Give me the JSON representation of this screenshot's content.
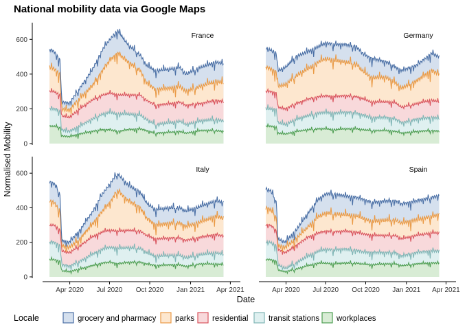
{
  "chart_data": {
    "type": "area",
    "title": "National mobility data via Google Maps",
    "xlabel": "Date",
    "ylabel": "Normalised Mobility",
    "ylim": [
      0,
      700
    ],
    "yticks": [
      0,
      200,
      400,
      600
    ],
    "xticks": [
      {
        "label": "Apr 2020",
        "t": 0.125
      },
      {
        "label": "Jul 2020",
        "t": 0.37
      },
      {
        "label": "Oct 2020",
        "t": 0.618
      },
      {
        "label": "Jan 2021",
        "t": 0.87
      },
      {
        "label": "Apr 2021",
        "t": 1.115
      }
    ],
    "legend_title": "Locale",
    "legend_position": "bottom",
    "stacked": true,
    "series_meta": [
      {
        "name": "workplaces",
        "line": "#4e9e52",
        "fill": "#d8ecd5"
      },
      {
        "name": "transit stations",
        "line": "#7fb5b5",
        "fill": "#dff0f0"
      },
      {
        "name": "residential",
        "line": "#d9545e",
        "fill": "#f8d9db"
      },
      {
        "name": "parks",
        "line": "#ea9a45",
        "fill": "#fde7cf"
      },
      {
        "name": "grocery and pharmacy",
        "line": "#4a6fa5",
        "fill": "#d5e0ee"
      }
    ],
    "panels": [
      {
        "name": "France",
        "t": [
          0,
          0.03,
          0.07,
          0.08,
          0.13,
          0.2,
          0.28,
          0.35,
          0.4,
          0.45,
          0.52,
          0.6,
          0.64,
          0.7,
          0.8,
          0.86,
          0.9,
          1.0,
          1.1,
          1.15
        ],
        "workplaces": [
          100,
          100,
          95,
          45,
          40,
          55,
          70,
          80,
          80,
          70,
          80,
          85,
          75,
          60,
          65,
          70,
          60,
          75,
          75,
          70
        ],
        "transit": [
          200,
          200,
          190,
          80,
          70,
          100,
          140,
          170,
          180,
          170,
          170,
          165,
          140,
          110,
          120,
          130,
          110,
          130,
          140,
          130
        ],
        "residential": [
          300,
          300,
          280,
          160,
          150,
          200,
          250,
          280,
          290,
          280,
          280,
          280,
          250,
          220,
          230,
          240,
          220,
          230,
          250,
          240
        ],
        "parks": [
          440,
          430,
          400,
          200,
          190,
          260,
          330,
          420,
          480,
          520,
          470,
          420,
          350,
          310,
          320,
          330,
          300,
          330,
          360,
          350
        ],
        "grocery": [
          540,
          530,
          480,
          240,
          230,
          320,
          420,
          540,
          600,
          650,
          570,
          510,
          450,
          420,
          430,
          440,
          400,
          440,
          470,
          460
        ]
      },
      {
        "name": "Germany",
        "t": [
          0,
          0.03,
          0.07,
          0.08,
          0.13,
          0.2,
          0.28,
          0.35,
          0.4,
          0.45,
          0.52,
          0.6,
          0.64,
          0.7,
          0.8,
          0.86,
          0.9,
          1.0,
          1.1,
          1.15
        ],
        "workplaces": [
          100,
          100,
          95,
          60,
          55,
          70,
          80,
          85,
          85,
          80,
          85,
          85,
          80,
          75,
          75,
          70,
          60,
          70,
          75,
          70
        ],
        "transit": [
          200,
          200,
          195,
          120,
          110,
          140,
          160,
          175,
          180,
          175,
          180,
          175,
          165,
          150,
          150,
          140,
          120,
          140,
          150,
          145
        ],
        "residential": [
          300,
          300,
          290,
          210,
          200,
          230,
          255,
          270,
          275,
          270,
          275,
          270,
          260,
          240,
          240,
          235,
          210,
          230,
          250,
          240
        ],
        "parks": [
          440,
          430,
          410,
          330,
          340,
          390,
          430,
          470,
          490,
          480,
          470,
          460,
          420,
          380,
          380,
          350,
          320,
          360,
          420,
          400
        ],
        "grocery": [
          550,
          540,
          520,
          420,
          440,
          500,
          530,
          560,
          580,
          570,
          570,
          560,
          520,
          490,
          470,
          440,
          420,
          450,
          520,
          500
        ]
      },
      {
        "name": "Italy",
        "t": [
          0,
          0.03,
          0.07,
          0.08,
          0.13,
          0.2,
          0.28,
          0.35,
          0.4,
          0.45,
          0.52,
          0.6,
          0.64,
          0.7,
          0.8,
          0.86,
          0.9,
          1.0,
          1.1,
          1.15
        ],
        "workplaces": [
          100,
          100,
          90,
          35,
          30,
          45,
          65,
          80,
          85,
          75,
          85,
          85,
          75,
          65,
          70,
          70,
          60,
          75,
          75,
          70
        ],
        "transit": [
          200,
          200,
          180,
          70,
          60,
          90,
          130,
          160,
          170,
          165,
          170,
          165,
          140,
          120,
          125,
          125,
          110,
          130,
          140,
          130
        ],
        "residential": [
          300,
          300,
          270,
          150,
          140,
          180,
          230,
          260,
          270,
          265,
          270,
          265,
          240,
          220,
          225,
          225,
          210,
          230,
          245,
          235
        ],
        "parks": [
          440,
          430,
          380,
          180,
          170,
          220,
          300,
          380,
          430,
          500,
          440,
          400,
          340,
          300,
          310,
          310,
          290,
          320,
          350,
          340
        ],
        "grocery": [
          550,
          540,
          480,
          210,
          200,
          270,
          370,
          480,
          540,
          600,
          530,
          490,
          430,
          390,
          400,
          400,
          380,
          410,
          440,
          430
        ]
      },
      {
        "name": "Spain",
        "t": [
          0,
          0.03,
          0.07,
          0.08,
          0.13,
          0.2,
          0.28,
          0.35,
          0.4,
          0.45,
          0.52,
          0.6,
          0.64,
          0.7,
          0.8,
          0.86,
          0.9,
          1.0,
          1.1,
          1.15
        ],
        "workplaces": [
          100,
          100,
          90,
          40,
          30,
          45,
          65,
          80,
          80,
          75,
          80,
          80,
          75,
          70,
          75,
          75,
          65,
          75,
          80,
          80
        ],
        "transit": [
          200,
          200,
          180,
          70,
          50,
          80,
          120,
          150,
          160,
          155,
          160,
          155,
          145,
          140,
          140,
          140,
          120,
          140,
          150,
          150
        ],
        "residential": [
          300,
          300,
          270,
          160,
          140,
          180,
          230,
          255,
          265,
          260,
          265,
          260,
          250,
          240,
          240,
          240,
          220,
          240,
          255,
          255
        ],
        "parks": [
          400,
          390,
          350,
          180,
          170,
          220,
          290,
          350,
          370,
          365,
          360,
          355,
          340,
          320,
          330,
          330,
          310,
          330,
          350,
          360
        ],
        "grocery": [
          510,
          500,
          440,
          220,
          200,
          270,
          370,
          450,
          480,
          480,
          470,
          460,
          450,
          430,
          440,
          440,
          420,
          440,
          460,
          470
        ]
      }
    ]
  }
}
